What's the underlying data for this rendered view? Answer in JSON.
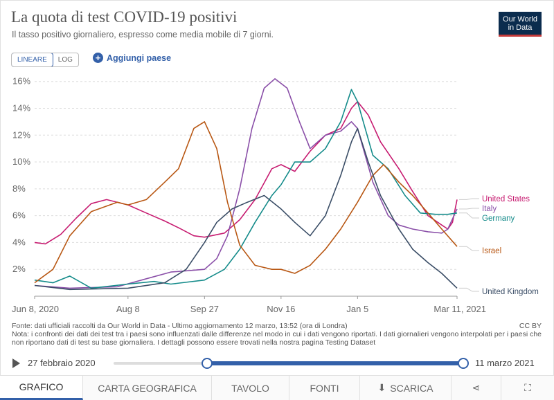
{
  "header": {
    "title": "La quota di test COVID-19 positivi",
    "subtitle": "Il tasso positivo giornaliero, espresso come media mobile di 7 giorni.",
    "logo_line1": "Our World",
    "logo_line2": "in Data"
  },
  "controls": {
    "scale_linear": "LINEARE",
    "scale_log": "LOG",
    "add_country": "Aggiungi paese",
    "add_icon": "plus-circle-icon"
  },
  "footer": {
    "source": "Fonte: dati ufficiali raccolti da Our World in Data - Ultimo aggiornamento 12 marzo, 13:52 (ora di Londra)",
    "note": "Nota: i confronti dei dati dei test tra i paesi sono influenzati dalle differenze nel modo in cui i dati vengono riportati. I dati giornalieri vengono interpolati per i paesi che",
    "note2": "non riportano dati di test su base giornaliera. I dettagli possono essere trovati nella nostra pagina Testing Dataset",
    "license": "CC BY"
  },
  "timeline": {
    "start_label": "27 febbraio 2020",
    "end_label": "11 marzo 2021",
    "start_fraction": 0.268,
    "end_fraction": 1.0
  },
  "tabs": [
    {
      "label": "GRAFICO",
      "icon": ""
    },
    {
      "label": "CARTA GEOGRAFICA",
      "icon": ""
    },
    {
      "label": "TAVOLO",
      "icon": ""
    },
    {
      "label": "FONTI",
      "icon": ""
    },
    {
      "label": "SCARICA",
      "icon": "download-icon"
    },
    {
      "label": "",
      "icon": "share-icon"
    },
    {
      "label": "",
      "icon": "fullscreen-icon"
    }
  ],
  "colors": {
    "United States": "#c71c71",
    "Italy": "#8a4fa8",
    "Germany": "#148b8a",
    "Israel": "#b85713",
    "United Kingdom": "#3a4d66",
    "accent": "#3360a9"
  },
  "chart_data": {
    "type": "line",
    "title": "La quota di test COVID-19 positivi",
    "xlabel": "",
    "ylabel": "",
    "y_unit": "%",
    "ylim": [
      0,
      16.5
    ],
    "xlim": [
      "2020-06-08",
      "2021-03-11"
    ],
    "y_ticks": [
      2,
      4,
      6,
      8,
      10,
      12,
      14,
      16
    ],
    "y_tick_labels": [
      "2%",
      "4%",
      "6%",
      "8%",
      "10%",
      "12%",
      "14%",
      "16%"
    ],
    "x_ticks": [
      "2020-06-08",
      "2020-08-08",
      "2020-09-27",
      "2020-11-16",
      "2021-01-05",
      "2021-03-11"
    ],
    "x_tick_labels": [
      "Jun 8, 2020",
      "Aug 8",
      "Sep 27",
      "Nov 16",
      "Jan 5",
      "Mar 11, 2021"
    ],
    "grid": "horizontal dashed",
    "legend": "right, labels at line ends",
    "series": [
      {
        "name": "United States",
        "points": [
          [
            "2020-06-08",
            4.0
          ],
          [
            "2020-06-15",
            3.9
          ],
          [
            "2020-06-25",
            4.6
          ],
          [
            "2020-07-05",
            5.8
          ],
          [
            "2020-07-15",
            6.9
          ],
          [
            "2020-07-25",
            7.2
          ],
          [
            "2020-08-08",
            6.8
          ],
          [
            "2020-08-20",
            6.2
          ],
          [
            "2020-09-01",
            5.6
          ],
          [
            "2020-09-10",
            5.1
          ],
          [
            "2020-09-20",
            4.5
          ],
          [
            "2020-09-27",
            4.4
          ],
          [
            "2020-10-10",
            4.7
          ],
          [
            "2020-10-20",
            5.7
          ],
          [
            "2020-10-30",
            7.2
          ],
          [
            "2020-11-10",
            9.5
          ],
          [
            "2020-11-16",
            9.8
          ],
          [
            "2020-11-25",
            9.3
          ],
          [
            "2020-12-05",
            10.8
          ],
          [
            "2020-12-15",
            12.0
          ],
          [
            "2020-12-25",
            12.5
          ],
          [
            "2021-01-01",
            14.0
          ],
          [
            "2021-01-05",
            14.5
          ],
          [
            "2021-01-12",
            13.5
          ],
          [
            "2021-01-20",
            11.5
          ],
          [
            "2021-02-01",
            9.5
          ],
          [
            "2021-02-10",
            7.8
          ],
          [
            "2021-02-20",
            6.0
          ],
          [
            "2021-03-01",
            5.3
          ],
          [
            "2021-03-05",
            5.0
          ],
          [
            "2021-03-08",
            5.5
          ],
          [
            "2021-03-11",
            7.2
          ]
        ]
      },
      {
        "name": "Italy",
        "points": [
          [
            "2020-06-08",
            0.8
          ],
          [
            "2020-07-01",
            0.6
          ],
          [
            "2020-08-01",
            0.7
          ],
          [
            "2020-08-20",
            1.3
          ],
          [
            "2020-09-05",
            1.8
          ],
          [
            "2020-09-27",
            2.0
          ],
          [
            "2020-10-05",
            2.8
          ],
          [
            "2020-10-12",
            4.5
          ],
          [
            "2020-10-20",
            8.0
          ],
          [
            "2020-10-28",
            12.5
          ],
          [
            "2020-11-05",
            15.5
          ],
          [
            "2020-11-12",
            16.2
          ],
          [
            "2020-11-20",
            15.5
          ],
          [
            "2020-11-28",
            13.0
          ],
          [
            "2020-12-05",
            11.0
          ],
          [
            "2020-12-15",
            12.0
          ],
          [
            "2020-12-25",
            12.3
          ],
          [
            "2021-01-01",
            13.0
          ],
          [
            "2021-01-05",
            12.5
          ],
          [
            "2021-01-15",
            8.5
          ],
          [
            "2021-01-25",
            6.0
          ],
          [
            "2021-02-01",
            5.3
          ],
          [
            "2021-02-10",
            5.0
          ],
          [
            "2021-02-20",
            4.8
          ],
          [
            "2021-03-01",
            4.7
          ],
          [
            "2021-03-05",
            5.0
          ],
          [
            "2021-03-11",
            6.5
          ]
        ]
      },
      {
        "name": "Germany",
        "points": [
          [
            "2020-06-08",
            1.2
          ],
          [
            "2020-06-20",
            1.0
          ],
          [
            "2020-07-01",
            1.5
          ],
          [
            "2020-07-15",
            0.6
          ],
          [
            "2020-08-08",
            0.9
          ],
          [
            "2020-08-25",
            1.1
          ],
          [
            "2020-09-05",
            0.9
          ],
          [
            "2020-09-27",
            1.2
          ],
          [
            "2020-10-10",
            2.0
          ],
          [
            "2020-10-20",
            3.5
          ],
          [
            "2020-10-30",
            5.5
          ],
          [
            "2020-11-10",
            7.5
          ],
          [
            "2020-11-16",
            8.3
          ],
          [
            "2020-11-25",
            10.0
          ],
          [
            "2020-12-05",
            10.0
          ],
          [
            "2020-12-15",
            11.0
          ],
          [
            "2020-12-25",
            13.0
          ],
          [
            "2021-01-01",
            15.4
          ],
          [
            "2021-01-05",
            14.5
          ],
          [
            "2021-01-15",
            10.5
          ],
          [
            "2021-01-25",
            9.5
          ],
          [
            "2021-02-05",
            7.5
          ],
          [
            "2021-02-15",
            6.2
          ],
          [
            "2021-02-25",
            6.1
          ],
          [
            "2021-03-05",
            6.1
          ],
          [
            "2021-03-11",
            6.2
          ]
        ]
      },
      {
        "name": "Israel",
        "points": [
          [
            "2020-06-08",
            1.0
          ],
          [
            "2020-06-20",
            2.0
          ],
          [
            "2020-07-01",
            4.5
          ],
          [
            "2020-07-15",
            6.3
          ],
          [
            "2020-08-01",
            7.0
          ],
          [
            "2020-08-08",
            6.8
          ],
          [
            "2020-08-20",
            7.2
          ],
          [
            "2020-09-01",
            8.5
          ],
          [
            "2020-09-10",
            9.5
          ],
          [
            "2020-09-20",
            12.5
          ],
          [
            "2020-09-27",
            13.0
          ],
          [
            "2020-10-05",
            11.0
          ],
          [
            "2020-10-12",
            7.0
          ],
          [
            "2020-10-20",
            3.8
          ],
          [
            "2020-10-30",
            2.3
          ],
          [
            "2020-11-10",
            2.0
          ],
          [
            "2020-11-16",
            2.0
          ],
          [
            "2020-11-25",
            1.7
          ],
          [
            "2020-12-05",
            2.3
          ],
          [
            "2020-12-15",
            3.5
          ],
          [
            "2020-12-25",
            5.0
          ],
          [
            "2021-01-05",
            7.0
          ],
          [
            "2021-01-15",
            9.0
          ],
          [
            "2021-01-22",
            9.8
          ],
          [
            "2021-02-01",
            8.5
          ],
          [
            "2021-02-10",
            7.5
          ],
          [
            "2021-02-20",
            6.2
          ],
          [
            "2021-03-01",
            5.0
          ],
          [
            "2021-03-11",
            3.7
          ]
        ]
      },
      {
        "name": "United Kingdom",
        "points": [
          [
            "2020-06-08",
            0.8
          ],
          [
            "2020-07-01",
            0.5
          ],
          [
            "2020-08-08",
            0.6
          ],
          [
            "2020-09-01",
            1.0
          ],
          [
            "2020-09-15",
            2.0
          ],
          [
            "2020-09-27",
            4.0
          ],
          [
            "2020-10-05",
            5.5
          ],
          [
            "2020-10-15",
            6.5
          ],
          [
            "2020-10-25",
            7.0
          ],
          [
            "2020-11-05",
            7.5
          ],
          [
            "2020-11-16",
            6.5
          ],
          [
            "2020-11-25",
            5.5
          ],
          [
            "2020-12-05",
            4.5
          ],
          [
            "2020-12-15",
            6.0
          ],
          [
            "2020-12-25",
            9.0
          ],
          [
            "2021-01-01",
            11.5
          ],
          [
            "2021-01-05",
            12.5
          ],
          [
            "2021-01-12",
            10.0
          ],
          [
            "2021-01-20",
            7.5
          ],
          [
            "2021-02-01",
            5.0
          ],
          [
            "2021-02-10",
            3.5
          ],
          [
            "2021-02-20",
            2.5
          ],
          [
            "2021-03-01",
            1.7
          ],
          [
            "2021-03-11",
            0.6
          ]
        ]
      }
    ]
  }
}
